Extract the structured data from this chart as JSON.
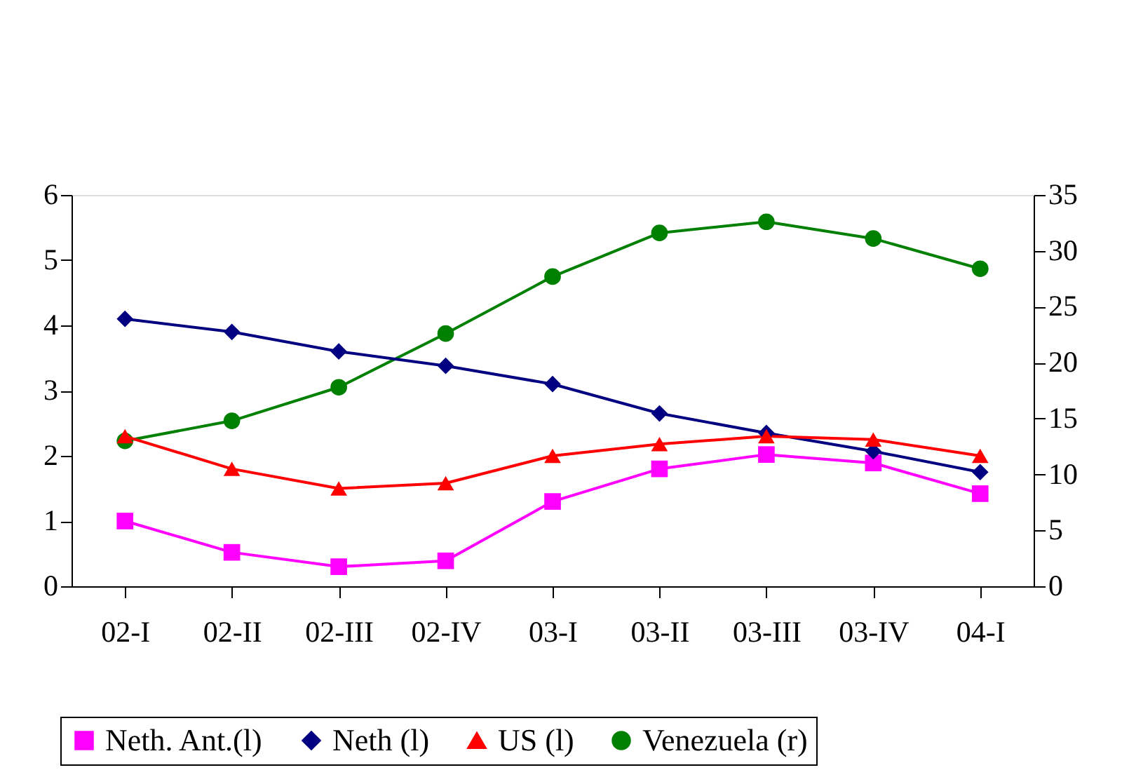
{
  "chart_data": {
    "type": "line",
    "categories": [
      "02-I",
      "02-II",
      "02-III",
      "02-IV",
      "03-I",
      "03-II",
      "03-III",
      "03-IV",
      "04-I"
    ],
    "series": [
      {
        "name": "Neth. Ant.(l)",
        "color": "#ff00ff",
        "marker": "square",
        "values": [
          1.0,
          0.52,
          0.3,
          0.39,
          1.3,
          1.8,
          2.02,
          1.89,
          1.42
        ]
      },
      {
        "name": "Neth (l)",
        "color": "#000080",
        "marker": "diamond",
        "values": [
          4.1,
          3.9,
          3.6,
          3.38,
          3.1,
          2.65,
          2.35,
          2.07,
          1.75
        ]
      },
      {
        "name": "US (l)",
        "color": "#ff0000",
        "marker": "triangle",
        "values": [
          2.3,
          1.8,
          1.5,
          1.58,
          2.0,
          2.18,
          2.3,
          2.25,
          2.0
        ]
      },
      {
        "name": "Venezuela (r)",
        "color": "#008000",
        "marker": "circle",
        "axis": "y2",
        "values": [
          13.0,
          14.8,
          17.8,
          22.6,
          27.7,
          31.6,
          32.6,
          31.1,
          28.4
        ]
      }
    ],
    "ylim": [
      0,
      6
    ],
    "yticks": [
      0,
      1,
      2,
      3,
      4,
      5,
      6
    ],
    "y2lim": [
      0,
      35
    ],
    "y2ticks": [
      0,
      5,
      10,
      15,
      20,
      25,
      30,
      35
    ],
    "grid": false,
    "legend": "bottom",
    "line_style": "solid"
  }
}
